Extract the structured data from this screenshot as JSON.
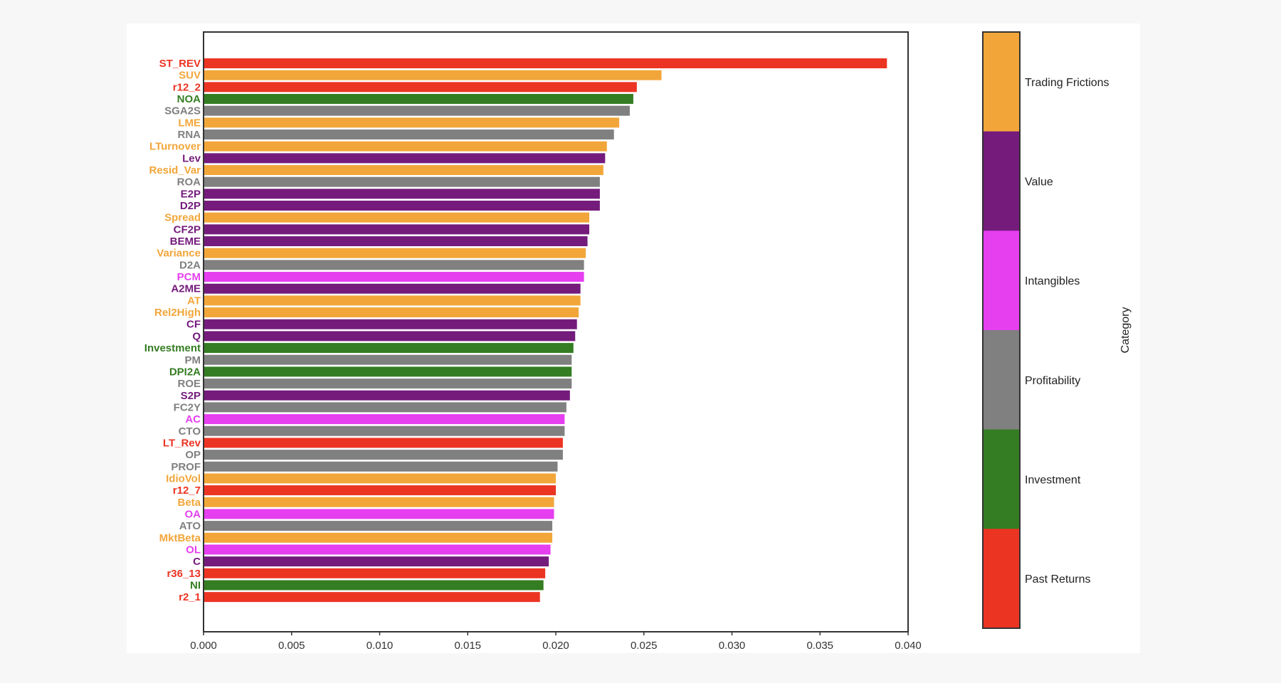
{
  "chart_data": {
    "type": "bar",
    "orientation": "horizontal",
    "xlim": [
      0,
      0.04
    ],
    "x_ticks": [
      "0.000",
      "0.005",
      "0.010",
      "0.015",
      "0.020",
      "0.025",
      "0.030",
      "0.035",
      "0.040"
    ],
    "grid": false,
    "legend": {
      "kind": "colorbar",
      "placement": "right",
      "title": "Category",
      "categories": [
        {
          "name": "Trading Frictions",
          "color": "#f2a63a"
        },
        {
          "name": "Value",
          "color": "#741b7c"
        },
        {
          "name": "Intangibles",
          "color": "#e53ff0"
        },
        {
          "name": "Profitability",
          "color": "#808080"
        },
        {
          "name": "Investment",
          "color": "#347d22"
        },
        {
          "name": "Past Returns",
          "color": "#ec3423"
        }
      ]
    },
    "bars": [
      {
        "label": "ST_REV",
        "value": 0.0388,
        "category": "Past Returns"
      },
      {
        "label": "SUV",
        "value": 0.026,
        "category": "Trading Frictions"
      },
      {
        "label": "r12_2",
        "value": 0.0246,
        "category": "Past Returns"
      },
      {
        "label": "NOA",
        "value": 0.0244,
        "category": "Investment"
      },
      {
        "label": "SGA2S",
        "value": 0.0242,
        "category": "Profitability"
      },
      {
        "label": "LME",
        "value": 0.0236,
        "category": "Trading Frictions"
      },
      {
        "label": "RNA",
        "value": 0.0233,
        "category": "Profitability"
      },
      {
        "label": "LTurnover",
        "value": 0.0229,
        "category": "Trading Frictions"
      },
      {
        "label": "Lev",
        "value": 0.0228,
        "category": "Value"
      },
      {
        "label": "Resid_Var",
        "value": 0.0227,
        "category": "Trading Frictions"
      },
      {
        "label": "ROA",
        "value": 0.0225,
        "category": "Profitability"
      },
      {
        "label": "E2P",
        "value": 0.0225,
        "category": "Value"
      },
      {
        "label": "D2P",
        "value": 0.0225,
        "category": "Value"
      },
      {
        "label": "Spread",
        "value": 0.0219,
        "category": "Trading Frictions"
      },
      {
        "label": "CF2P",
        "value": 0.0219,
        "category": "Value"
      },
      {
        "label": "BEME",
        "value": 0.0218,
        "category": "Value"
      },
      {
        "label": "Variance",
        "value": 0.0217,
        "category": "Trading Frictions"
      },
      {
        "label": "D2A",
        "value": 0.0216,
        "category": "Profitability"
      },
      {
        "label": "PCM",
        "value": 0.0216,
        "category": "Intangibles"
      },
      {
        "label": "A2ME",
        "value": 0.0214,
        "category": "Value"
      },
      {
        "label": "AT",
        "value": 0.0214,
        "category": "Trading Frictions"
      },
      {
        "label": "Rel2High",
        "value": 0.0213,
        "category": "Trading Frictions"
      },
      {
        "label": "CF",
        "value": 0.0212,
        "category": "Value"
      },
      {
        "label": "Q",
        "value": 0.0211,
        "category": "Value"
      },
      {
        "label": "Investment",
        "value": 0.021,
        "category": "Investment"
      },
      {
        "label": "PM",
        "value": 0.0209,
        "category": "Profitability"
      },
      {
        "label": "DPI2A",
        "value": 0.0209,
        "category": "Investment"
      },
      {
        "label": "ROE",
        "value": 0.0209,
        "category": "Profitability"
      },
      {
        "label": "S2P",
        "value": 0.0208,
        "category": "Value"
      },
      {
        "label": "FC2Y",
        "value": 0.0206,
        "category": "Profitability"
      },
      {
        "label": "AC",
        "value": 0.0205,
        "category": "Intangibles"
      },
      {
        "label": "CTO",
        "value": 0.0205,
        "category": "Profitability"
      },
      {
        "label": "LT_Rev",
        "value": 0.0204,
        "category": "Past Returns"
      },
      {
        "label": "OP",
        "value": 0.0204,
        "category": "Profitability"
      },
      {
        "label": "PROF",
        "value": 0.0201,
        "category": "Profitability"
      },
      {
        "label": "IdioVol",
        "value": 0.02,
        "category": "Trading Frictions"
      },
      {
        "label": "r12_7",
        "value": 0.02,
        "category": "Past Returns"
      },
      {
        "label": "Beta",
        "value": 0.0199,
        "category": "Trading Frictions"
      },
      {
        "label": "OA",
        "value": 0.0199,
        "category": "Intangibles"
      },
      {
        "label": "ATO",
        "value": 0.0198,
        "category": "Profitability"
      },
      {
        "label": "MktBeta",
        "value": 0.0198,
        "category": "Trading Frictions"
      },
      {
        "label": "OL",
        "value": 0.0197,
        "category": "Intangibles"
      },
      {
        "label": "C",
        "value": 0.0196,
        "category": "Value"
      },
      {
        "label": "r36_13",
        "value": 0.0194,
        "category": "Past Returns"
      },
      {
        "label": "NI",
        "value": 0.0193,
        "category": "Investment"
      },
      {
        "label": "r2_1",
        "value": 0.0191,
        "category": "Past Returns"
      }
    ]
  }
}
